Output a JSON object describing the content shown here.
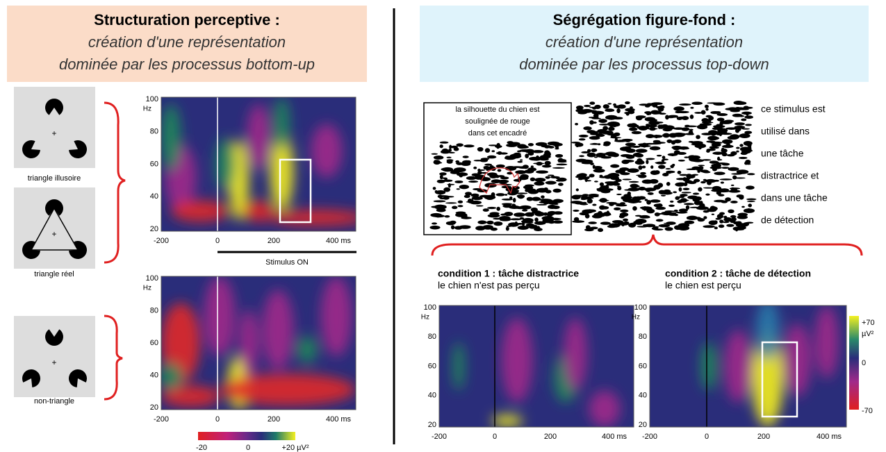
{
  "left": {
    "title": "Structuration perceptive :",
    "subtitle": [
      "création d'une représentation",
      "dominée par les processus bottom-up"
    ],
    "figures": [
      "triangle illusoire",
      "triangle réel",
      "non-triangle"
    ],
    "axes": {
      "yticks": [
        "100",
        "80",
        "60",
        "40",
        "20"
      ],
      "yunit": "Hz",
      "xticks": [
        "-200",
        "0",
        "200",
        "400 ms"
      ]
    },
    "stimulus": "Stimulus ON",
    "colorbar": [
      "-20",
      "0",
      "+20 µV²"
    ]
  },
  "right": {
    "title": "Ségrégation figure-fond :",
    "subtitle": [
      "création d'une représentation",
      "dominée par les processus top-down"
    ],
    "box_text": [
      "la silhouette du chien est",
      "soulignée de rouge",
      "dans cet encadré"
    ],
    "side_text": [
      "ce stimulus est",
      "utilisé dans",
      "une tâche",
      "distractrice et",
      "dans une tâche",
      "de détection"
    ],
    "conditions": [
      {
        "title": "condition 1 : tâche distractrice",
        "subtitle": "le chien n'est pas perçu"
      },
      {
        "title": "condition 2 : tâche de détection",
        "subtitle": "le chien est perçu"
      }
    ],
    "axes": {
      "yticks": [
        "100",
        "80",
        "60",
        "40",
        "20"
      ],
      "yunit": "Hz",
      "xticks": [
        "-200",
        "0",
        "200",
        "400 ms"
      ]
    },
    "colorbar": [
      "+70",
      "µV²",
      "0",
      "-70"
    ]
  }
}
